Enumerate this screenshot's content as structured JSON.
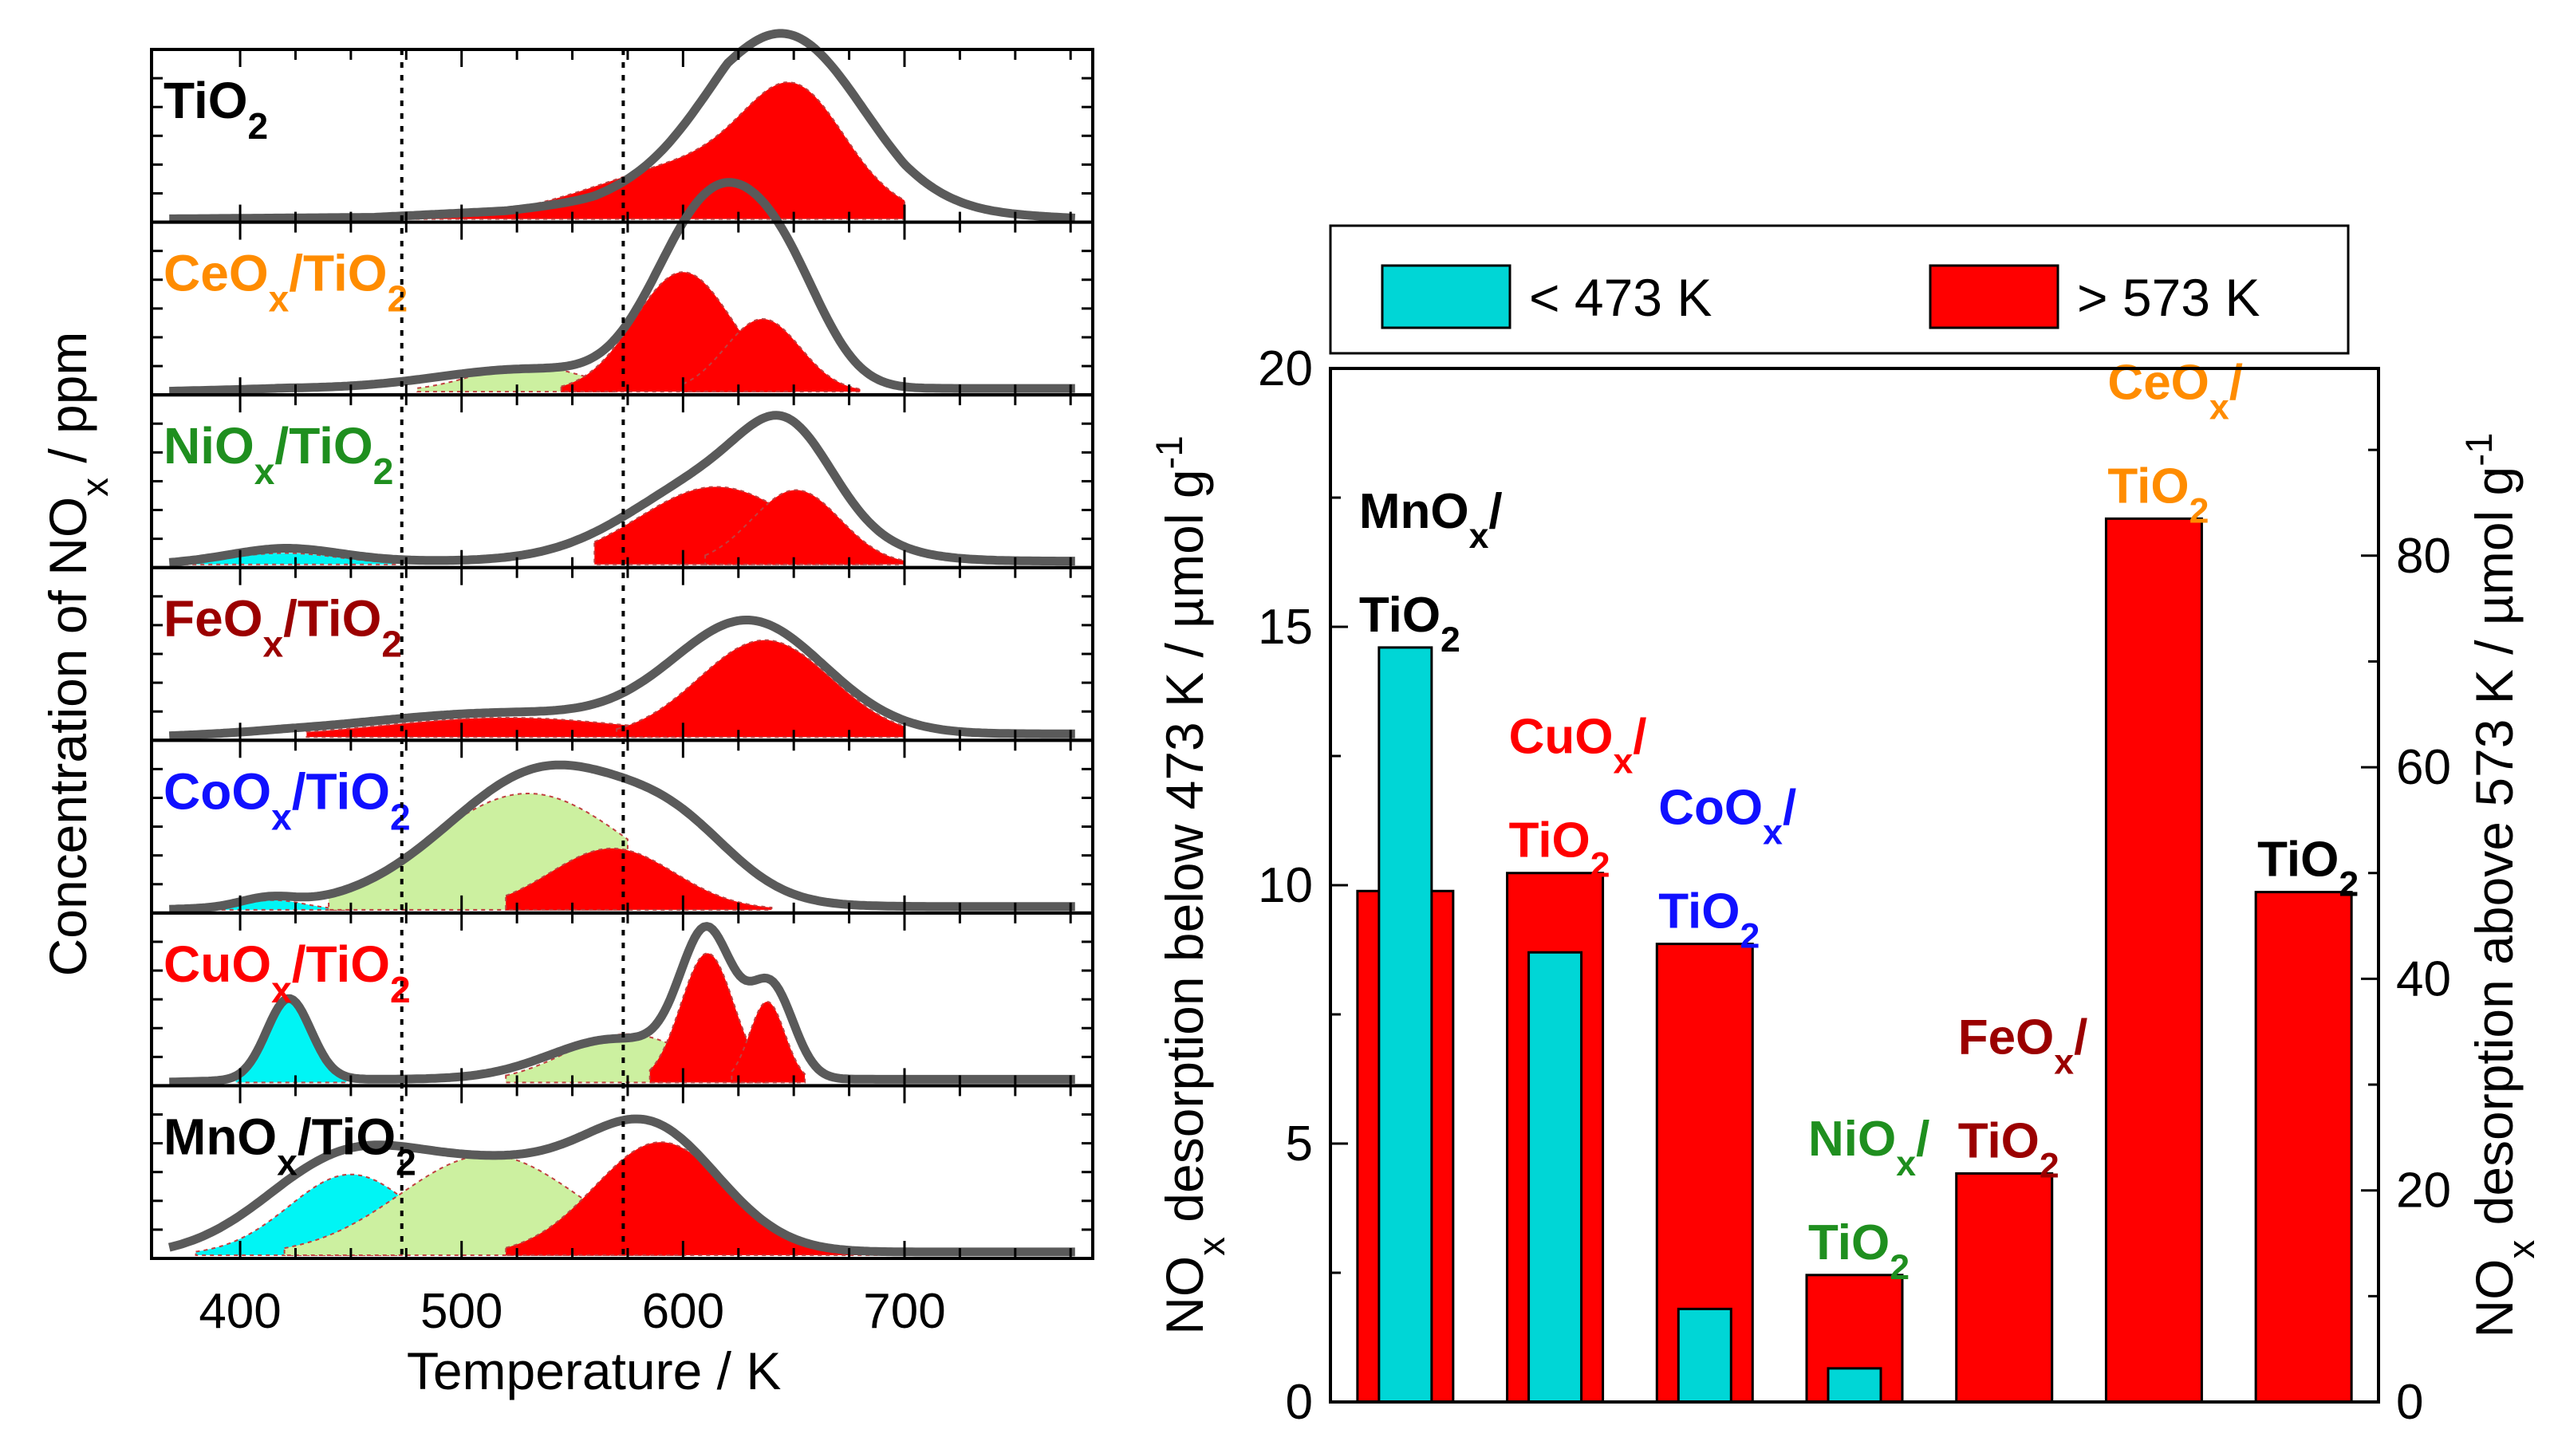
{
  "colors": {
    "red": "#ff0000",
    "cyan": "#00d6d6",
    "cyan_fill": "#00f5f5",
    "green_fill": "#ccf0a0",
    "gray_line": "#5a5a5a",
    "orange": "#ff8c00",
    "green": "#1f8f1f",
    "darkred": "#9b0000",
    "blue": "#1010ff",
    "black": "#000000"
  },
  "chart_data": [
    {
      "type": "area",
      "title": "",
      "xlabel": "Temperature / K",
      "ylabel": "Concentration of NOx / ppm",
      "xlim": [
        360,
        785
      ],
      "xticks": [
        "400",
        "500",
        "600",
        "700"
      ],
      "xtick_values": [
        400,
        500,
        600,
        700
      ],
      "reference_lines": [
        473,
        573
      ],
      "panels": [
        {
          "name": "TiO2",
          "label_base": "TiO",
          "label_sub": "2",
          "label_mid": "",
          "label_end": "",
          "label_color": "black",
          "total": {
            "center": 648,
            "width": 34,
            "height": 0.93,
            "background": [
              [
                360,
                0
              ],
              [
                460,
                0.01
              ],
              [
                520,
                0.05
              ],
              [
                560,
                0.11
              ],
              [
                590,
                0.2
              ],
              [
                620,
                0.3
              ],
              [
                700,
                0.05
              ],
              [
                785,
                0
              ]
            ]
          },
          "components": [
            {
              "fill": "red",
              "peaks": [
                [
                  612,
                  48,
                  0.36
                ],
                [
                  651,
                  22,
                  0.58
                ]
              ],
              "from": 430,
              "to": 700
            }
          ]
        },
        {
          "name": "CeOx/TiO2",
          "label_base": "CeO",
          "label_sub": "x",
          "label_mid": "/TiO",
          "label_end": "2",
          "label_color": "orange",
          "total": {
            "peaks": [
              [
                530,
                40,
                0.12
              ],
              [
                603,
                22,
                0.68
              ],
              [
                628,
                22,
                0.72
              ],
              [
                650,
                18,
                0.35
              ]
            ],
            "base": 0.02
          },
          "components": [
            {
              "fill": "green_fill",
              "peaks": [
                [
                  530,
                  25,
                  0.16
                ]
              ],
              "from": 480,
              "to": 570
            },
            {
              "fill": "red",
              "peaks": [
                [
                  600,
                  22,
                  0.74
                ]
              ],
              "from": 545,
              "to": 650
            },
            {
              "fill": "red",
              "peaks": [
                [
                  636,
                  17,
                  0.45
                ]
              ],
              "from": 600,
              "to": 680
            }
          ]
        },
        {
          "name": "NiOx/TiO2",
          "label_base": "NiO",
          "label_sub": "x",
          "label_mid": "/TiO",
          "label_end": "2",
          "label_color": "green",
          "total": {
            "peaks": [
              [
                420,
                25,
                0.08
              ],
              [
                620,
                40,
                0.55
              ],
              [
                648,
                20,
                0.45
              ]
            ],
            "base": 0.02
          },
          "components": [
            {
              "fill": "cyan_fill",
              "peaks": [
                [
                  420,
                  25,
                  0.07
                ]
              ],
              "from": 370,
              "to": 470
            },
            {
              "fill": "red",
              "peaks": [
                [
                  615,
                  35,
                  0.48
                ]
              ],
              "from": 560,
              "to": 690
            },
            {
              "fill": "red",
              "peaks": [
                [
                  651,
                  20,
                  0.46
                ]
              ],
              "from": 610,
              "to": 700
            }
          ]
        },
        {
          "name": "FeOx/TiO2",
          "label_base": "FeO",
          "label_sub": "x",
          "label_mid": "/TiO",
          "label_end": "2",
          "label_color": "darkred",
          "total": {
            "peaks": [
              [
                520,
                60,
                0.13
              ],
              [
                630,
                34,
                0.68
              ]
            ],
            "base": 0.02
          },
          "components": [
            {
              "fill": "red",
              "peaks": [
                [
                  520,
                  55,
                  0.12
                ]
              ],
              "from": 430,
              "to": 600
            },
            {
              "fill": "red",
              "peaks": [
                [
                  637,
                  30,
                  0.6
                ]
              ],
              "from": 570,
              "to": 700
            }
          ]
        },
        {
          "name": "CoOx/TiO2",
          "label_base": "CoO",
          "label_sub": "x",
          "label_mid": "/TiO",
          "label_end": "2",
          "label_color": "blue",
          "total": {
            "peaks": [
              [
                412,
                12,
                0.05
              ],
              [
                540,
                45,
                0.86
              ],
              [
                600,
                25,
                0.25
              ]
            ],
            "base": 0.02
          },
          "components": [
            {
              "fill": "cyan_fill",
              "peaks": [
                [
                  415,
                  14,
                  0.06
                ]
              ],
              "from": 385,
              "to": 450
            },
            {
              "fill": "green_fill",
              "peaks": [
                [
                  530,
                  45,
                  0.72
                ]
              ],
              "from": 440,
              "to": 575
            },
            {
              "fill": "red",
              "peaks": [
                [
                  568,
                  28,
                  0.38
                ]
              ],
              "from": 520,
              "to": 640
            }
          ]
        },
        {
          "name": "CuOx/TiO2",
          "label_base": "CuO",
          "label_sub": "x",
          "label_mid": "/TiO",
          "label_end": "2",
          "label_color": "red",
          "total": {
            "peaks": [
              [
                422,
                10,
                0.5
              ],
              [
                570,
                30,
                0.25
              ],
              [
                611,
                12,
                0.84
              ],
              [
                640,
                10,
                0.55
              ]
            ],
            "base": 0.02
          },
          "components": [
            {
              "fill": "cyan_fill",
              "peaks": [
                [
                  422,
                  10,
                  0.5
                ]
              ],
              "from": 398,
              "to": 448
            },
            {
              "fill": "green_fill",
              "peaks": [
                [
                  575,
                  28,
                  0.3
                ]
              ],
              "from": 520,
              "to": 595
            },
            {
              "fill": "red",
              "peaks": [
                [
                  611,
                  12,
                  0.8
                ]
              ],
              "from": 585,
              "to": 638
            },
            {
              "fill": "red",
              "peaks": [
                [
                  638,
                  8,
                  0.5
                ]
              ],
              "from": 622,
              "to": 655
            }
          ]
        },
        {
          "name": "MnOx/TiO2",
          "label_base": "MnO",
          "label_sub": "x",
          "label_mid": "/TiO",
          "label_end": "2",
          "label_color": "black",
          "total": {
            "peaks": [
              [
                445,
                35,
                0.5
              ],
              [
                520,
                45,
                0.5
              ],
              [
                588,
                30,
                0.64
              ]
            ],
            "base": 0.02
          },
          "components": [
            {
              "fill": "cyan_fill",
              "peaks": [
                [
                  450,
                  28,
                  0.5
                ]
              ],
              "from": 380,
              "to": 473
            },
            {
              "fill": "green_fill",
              "peaks": [
                [
                  512,
                  40,
                  0.62
                ]
              ],
              "from": 420,
              "to": 600
            },
            {
              "fill": "red",
              "peaks": [
                [
                  590,
                  30,
                  0.7
                ]
              ],
              "from": 520,
              "to": 690
            }
          ]
        }
      ]
    },
    {
      "type": "bar",
      "title": "",
      "ylabel_left": "NOx desorption below 473 K / µmol g⁻¹",
      "ylabel_right": "NOx desorption above 573 K / µmol g⁻¹",
      "ylim_left": [
        0,
        20
      ],
      "ylim_right": [
        0,
        97.7
      ],
      "yticks_left": [
        "0",
        "5",
        "10",
        "15",
        "20"
      ],
      "ytick_values_left": [
        0,
        5,
        10,
        15,
        20
      ],
      "yticks_right": [
        "0",
        "20",
        "40",
        "60",
        "80"
      ],
      "ytick_values_right": [
        0,
        20,
        40,
        60,
        80
      ],
      "legend": {
        "placement": "top",
        "entries": [
          "< 473 K",
          "> 573 K"
        ]
      },
      "categories": [
        "MnOx/TiO2",
        "CuOx/TiO2",
        "CoOx/TiO2",
        "NiOx/TiO2",
        "FeOx/TiO2",
        "CeOx/TiO2",
        "TiO2"
      ],
      "series": [
        {
          "name": "> 573 K",
          "axis": "right",
          "color": "red",
          "values": [
            48.3,
            50.0,
            43.3,
            12.0,
            21.6,
            83.5,
            48.2
          ]
        },
        {
          "name": "< 473 K",
          "axis": "left",
          "color": "cyan",
          "values": [
            14.6,
            8.7,
            1.8,
            0.65,
            null,
            null,
            null
          ]
        }
      ],
      "labels": [
        {
          "line1_base": "MnO",
          "line1_sub": "x",
          "line1_end": "/",
          "line2_base": "TiO",
          "line2_sub": "2",
          "color": "black"
        },
        {
          "line1_base": "CuO",
          "line1_sub": "x",
          "line1_end": "/",
          "line2_base": "TiO",
          "line2_sub": "2",
          "color": "red"
        },
        {
          "line1_base": "CoO",
          "line1_sub": "x",
          "line1_end": "/",
          "line2_base": "TiO",
          "line2_sub": "2",
          "color": "blue"
        },
        {
          "line1_base": "NiO",
          "line1_sub": "x",
          "line1_end": "/",
          "line2_base": "TiO",
          "line2_sub": "2",
          "color": "green"
        },
        {
          "line1_base": "FeO",
          "line1_sub": "x",
          "line1_end": "/",
          "line2_base": "TiO",
          "line2_sub": "2",
          "color": "darkred"
        },
        {
          "line1_base": "CeO",
          "line1_sub": "x",
          "line1_end": "/",
          "line2_base": "TiO",
          "line2_sub": "2",
          "color": "orange"
        },
        {
          "line1_base": "",
          "line1_sub": "",
          "line1_end": "",
          "line2_base": "TiO",
          "line2_sub": "2",
          "color": "black"
        }
      ]
    }
  ]
}
